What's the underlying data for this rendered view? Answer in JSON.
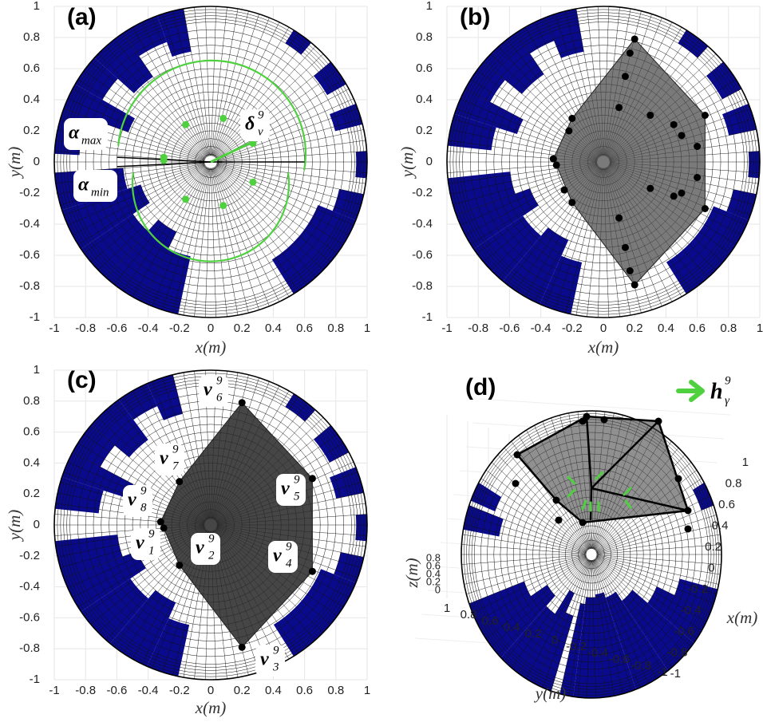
{
  "panels": [
    {
      "label": "(a)",
      "xlabel": "x(m)",
      "ylabel": "y(m)",
      "xticks": [
        -1,
        -0.8,
        -0.6,
        -0.4,
        -0.2,
        0,
        0.2,
        0.4,
        0.6,
        0.8,
        1
      ],
      "yticks": [
        -1,
        -0.8,
        -0.6,
        -0.4,
        -0.2,
        0,
        0.2,
        0.4,
        0.6,
        0.8,
        1
      ],
      "annotations": [
        {
          "base": "α",
          "sub": "max"
        },
        {
          "base": "α",
          "sub": "min"
        },
        {
          "base": "δ",
          "sub": "ν",
          "sup": "9"
        }
      ]
    },
    {
      "label": "(b)",
      "xlabel": "x(m)",
      "ylabel": "y(m)",
      "xticks": [
        -1,
        -0.8,
        -0.6,
        -0.4,
        -0.2,
        0,
        0.2,
        0.4,
        0.6,
        0.8,
        1
      ],
      "yticks": [
        -1,
        -0.8,
        -0.6,
        -0.4,
        -0.2,
        0,
        0.2,
        0.4,
        0.6,
        0.8,
        1
      ]
    },
    {
      "label": "(c)",
      "xlabel": "x(m)",
      "ylabel": "y(m)",
      "xticks": [
        -1,
        -0.8,
        -0.6,
        -0.4,
        -0.2,
        0,
        0.2,
        0.4,
        0.6,
        0.8,
        1
      ],
      "yticks": [
        -1,
        -0.8,
        -0.6,
        -0.4,
        -0.2,
        0,
        0.2,
        0.4,
        0.6,
        0.8,
        1
      ],
      "annotations": [
        {
          "base": "ν",
          "sub": "1",
          "sup": "9"
        },
        {
          "base": "ν",
          "sub": "2",
          "sup": "9"
        },
        {
          "base": "ν",
          "sub": "3",
          "sup": "9"
        },
        {
          "base": "ν",
          "sub": "4",
          "sup": "9"
        },
        {
          "base": "ν",
          "sub": "5",
          "sup": "9"
        },
        {
          "base": "ν",
          "sub": "6",
          "sup": "9"
        },
        {
          "base": "ν",
          "sub": "7",
          "sup": "9"
        },
        {
          "base": "ν",
          "sub": "8",
          "sup": "9"
        }
      ]
    },
    {
      "label": "(d)",
      "xlabel": "x(m)",
      "ylabel": "y(m)",
      "zlabel": "z(m)",
      "xticks": [
        1,
        0.8,
        0.6,
        0.4,
        0.2,
        0,
        -0.2,
        -0.4,
        -0.6,
        -0.8,
        -1
      ],
      "yticks": [
        1,
        0.8,
        0.6,
        0.4,
        0.2,
        0,
        -0.2,
        -0.4,
        -0.6,
        -0.8,
        -1
      ],
      "zticks": [
        0.8,
        0.6,
        0.4,
        0.2,
        0
      ],
      "legend": {
        "base": "h",
        "sub": "γ",
        "sup": "9"
      }
    }
  ]
}
